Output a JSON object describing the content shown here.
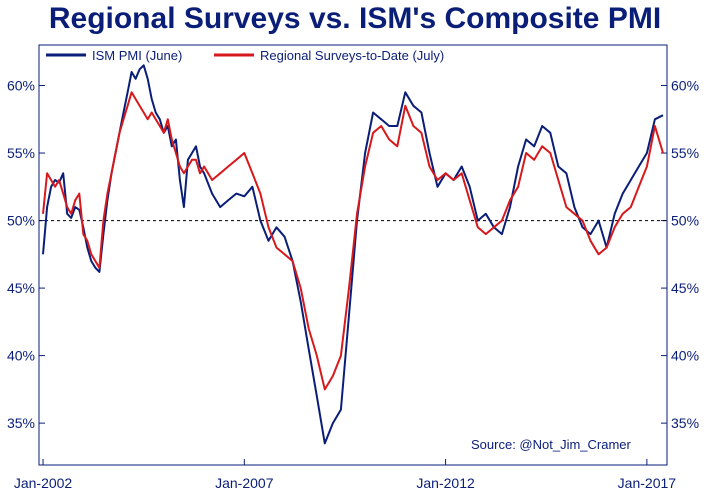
{
  "chart_data": {
    "type": "line",
    "title": "Regional Surveys vs. ISM's Composite PMI",
    "source": "Source: @Not_Jim_Cramer",
    "y_ticks": [
      {
        "value": 35,
        "label": "35%"
      },
      {
        "value": 40,
        "label": "40%"
      },
      {
        "value": 45,
        "label": "45%"
      },
      {
        "value": 50,
        "label": "50%"
      },
      {
        "value": 55,
        "label": "55%"
      },
      {
        "value": 60,
        "label": "60%"
      }
    ],
    "x_ticks": [
      {
        "value": 2002.0,
        "label": "Jan-2002"
      },
      {
        "value": 2007.0,
        "label": "Jan-2007"
      },
      {
        "value": 2012.0,
        "label": "Jan-2012"
      },
      {
        "value": 2017.0,
        "label": "Jan-2017"
      }
    ],
    "xlim": [
      2001.9,
      2017.5
    ],
    "ylim": [
      31.9,
      63.0
    ],
    "reference_line": 50,
    "grid": false,
    "legend_position": "top-left",
    "series": [
      {
        "name": "ISM PMI (June)",
        "color": "#0a1e78",
        "x": [
          2002.0,
          2002.1,
          2002.2,
          2002.3,
          2002.4,
          2002.5,
          2002.6,
          2002.7,
          2002.8,
          2002.9,
          2003.0,
          2003.1,
          2003.2,
          2003.3,
          2003.4,
          2003.5,
          2003.6,
          2003.7,
          2003.8,
          2003.9,
          2004.0,
          2004.1,
          2004.2,
          2004.3,
          2004.4,
          2004.5,
          2004.6,
          2004.7,
          2004.8,
          2004.9,
          2005.0,
          2005.1,
          2005.2,
          2005.3,
          2005.4,
          2005.5,
          2005.6,
          2005.7,
          2005.8,
          2005.9,
          2006.0,
          2006.2,
          2006.4,
          2006.6,
          2006.8,
          2007.0,
          2007.2,
          2007.4,
          2007.6,
          2007.8,
          2008.0,
          2008.2,
          2008.4,
          2008.6,
          2008.8,
          2009.0,
          2009.2,
          2009.4,
          2009.6,
          2009.8,
          2010.0,
          2010.2,
          2010.4,
          2010.6,
          2010.8,
          2011.0,
          2011.2,
          2011.4,
          2011.6,
          2011.8,
          2012.0,
          2012.2,
          2012.4,
          2012.6,
          2012.8,
          2013.0,
          2013.2,
          2013.4,
          2013.6,
          2013.8,
          2014.0,
          2014.2,
          2014.4,
          2014.6,
          2014.8,
          2015.0,
          2015.2,
          2015.4,
          2015.6,
          2015.8,
          2016.0,
          2016.2,
          2016.4,
          2016.6,
          2016.8,
          2017.0,
          2017.2,
          2017.4
        ],
        "values": [
          47.5,
          51.0,
          52.5,
          53.0,
          52.8,
          53.5,
          50.5,
          50.2,
          51.0,
          50.8,
          49.5,
          48.0,
          47.0,
          46.5,
          46.2,
          49.0,
          51.5,
          53.5,
          55.0,
          56.5,
          58.0,
          59.5,
          61.0,
          60.5,
          61.2,
          61.5,
          60.5,
          59.0,
          58.0,
          57.5,
          56.5,
          57.0,
          55.5,
          56.0,
          53.0,
          51.0,
          54.5,
          55.0,
          55.5,
          54.0,
          53.5,
          52.0,
          51.0,
          51.5,
          52.0,
          51.8,
          52.5,
          50.0,
          48.5,
          49.5,
          48.8,
          47.0,
          44.0,
          40.5,
          37.0,
          33.5,
          35.0,
          36.0,
          43.0,
          50.0,
          55.0,
          58.0,
          57.5,
          57.0,
          57.0,
          59.5,
          58.5,
          58.0,
          55.0,
          52.5,
          53.5,
          53.0,
          54.0,
          52.5,
          50.0,
          50.5,
          49.5,
          49.0,
          51.0,
          54.0,
          56.0,
          55.5,
          57.0,
          56.5,
          54.0,
          53.5,
          51.0,
          49.5,
          49.0,
          50.0,
          48.0,
          50.5,
          52.0,
          53.0,
          54.0,
          55.0,
          57.5,
          57.8
        ]
      },
      {
        "name": "Regional Surveys-to-Date (July)",
        "color": "#d7191c",
        "x": [
          2002.0,
          2002.1,
          2002.2,
          2002.3,
          2002.4,
          2002.5,
          2002.6,
          2002.7,
          2002.8,
          2002.9,
          2003.0,
          2003.1,
          2003.2,
          2003.3,
          2003.4,
          2003.5,
          2003.6,
          2003.7,
          2003.8,
          2003.9,
          2004.0,
          2004.1,
          2004.2,
          2004.3,
          2004.4,
          2004.5,
          2004.6,
          2004.7,
          2004.8,
          2004.9,
          2005.0,
          2005.1,
          2005.2,
          2005.3,
          2005.4,
          2005.5,
          2005.6,
          2005.7,
          2005.8,
          2005.9,
          2006.0,
          2006.2,
          2006.4,
          2006.6,
          2006.8,
          2007.0,
          2007.2,
          2007.4,
          2007.6,
          2007.8,
          2008.0,
          2008.2,
          2008.4,
          2008.6,
          2008.8,
          2009.0,
          2009.2,
          2009.4,
          2009.6,
          2009.8,
          2010.0,
          2010.2,
          2010.4,
          2010.6,
          2010.8,
          2011.0,
          2011.2,
          2011.4,
          2011.6,
          2011.8,
          2012.0,
          2012.2,
          2012.4,
          2012.6,
          2012.8,
          2013.0,
          2013.2,
          2013.4,
          2013.6,
          2013.8,
          2014.0,
          2014.2,
          2014.4,
          2014.6,
          2014.8,
          2015.0,
          2015.2,
          2015.4,
          2015.6,
          2015.8,
          2016.0,
          2016.2,
          2016.4,
          2016.6,
          2016.8,
          2017.0,
          2017.2,
          2017.4
        ],
        "values": [
          50.5,
          53.5,
          53.0,
          52.5,
          53.0,
          52.0,
          51.0,
          50.5,
          51.5,
          52.0,
          49.0,
          48.5,
          47.5,
          47.0,
          46.5,
          50.0,
          52.0,
          53.5,
          55.0,
          56.5,
          57.5,
          58.5,
          59.5,
          59.0,
          58.5,
          58.0,
          57.5,
          58.0,
          57.5,
          57.0,
          56.5,
          57.5,
          56.0,
          55.0,
          54.0,
          53.5,
          54.0,
          54.5,
          54.5,
          53.5,
          54.0,
          53.0,
          53.5,
          54.0,
          54.5,
          55.0,
          53.5,
          52.0,
          49.5,
          48.0,
          47.5,
          47.0,
          45.0,
          42.0,
          40.0,
          37.5,
          38.5,
          40.0,
          45.0,
          50.5,
          54.0,
          56.5,
          57.0,
          56.0,
          55.5,
          58.5,
          57.0,
          56.5,
          54.0,
          53.0,
          53.5,
          53.0,
          53.5,
          51.5,
          49.5,
          49.0,
          49.5,
          50.0,
          51.5,
          52.5,
          55.0,
          54.5,
          55.5,
          55.0,
          53.0,
          51.0,
          50.5,
          50.0,
          48.5,
          47.5,
          48.0,
          49.5,
          50.5,
          51.0,
          52.5,
          54.0,
          57.0,
          55.0
        ]
      }
    ]
  }
}
